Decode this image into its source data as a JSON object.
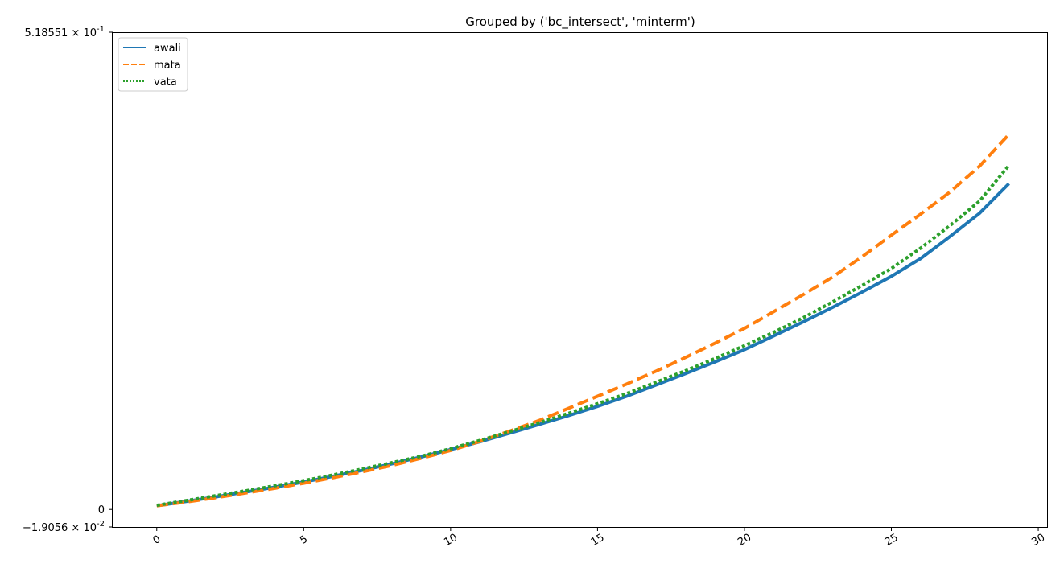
{
  "chart_data": {
    "type": "line",
    "title": "Grouped by ('bc_intersect', 'minterm')",
    "xlabel": "",
    "ylabel": "",
    "xlim": [
      -1.5,
      30.3
    ],
    "ylim": [
      -0.019056,
      0.518551
    ],
    "x_ticks": [
      0,
      5,
      10,
      15,
      20,
      25,
      30
    ],
    "x_tick_labels": [
      "0",
      "5",
      "10",
      "15",
      "20",
      "25",
      "30"
    ],
    "y_ticks": [
      {
        "value": 0.518551,
        "mantissa": "5.18551",
        "exponent": "-1"
      },
      {
        "value": 0,
        "mantissa": "0",
        "exponent": ""
      },
      {
        "value": -0.019056,
        "mantissa": "−1.9056",
        "exponent": "-2"
      }
    ],
    "legend_position": "upper-left",
    "grid": false,
    "x": [
      0,
      1,
      2,
      3,
      4,
      5,
      6,
      7,
      8,
      9,
      10,
      11,
      12,
      13,
      14,
      15,
      16,
      17,
      18,
      19,
      20,
      21,
      22,
      23,
      24,
      25,
      26,
      27,
      28,
      29
    ],
    "series": [
      {
        "name": "awali",
        "style": "solid",
        "color": "#1f77b4",
        "values": [
          0.004,
          0.0087,
          0.0136,
          0.0188,
          0.0241,
          0.0298,
          0.036,
          0.0425,
          0.0495,
          0.057,
          0.065,
          0.0735,
          0.0828,
          0.0922,
          0.1018,
          0.112,
          0.1231,
          0.1353,
          0.1477,
          0.1603,
          0.1736,
          0.1886,
          0.2038,
          0.2196,
          0.2361,
          0.2533,
          0.2727,
          0.2967,
          0.3218,
          0.354
        ]
      },
      {
        "name": "mata",
        "style": "dashed",
        "color": "#ff7f0e",
        "values": [
          0.004,
          0.008,
          0.0127,
          0.0177,
          0.0229,
          0.0285,
          0.0345,
          0.0409,
          0.0478,
          0.0556,
          0.064,
          0.074,
          0.085,
          0.0965,
          0.1097,
          0.123,
          0.1364,
          0.1504,
          0.1652,
          0.1807,
          0.1967,
          0.215,
          0.2334,
          0.2525,
          0.2745,
          0.298,
          0.321,
          0.345,
          0.373,
          0.4074
        ]
      },
      {
        "name": "vata",
        "style": "dotted",
        "color": "#2ca02c",
        "values": [
          0.0045,
          0.0096,
          0.0149,
          0.0201,
          0.0256,
          0.0313,
          0.0375,
          0.044,
          0.0508,
          0.0578,
          0.066,
          0.075,
          0.0845,
          0.0941,
          0.1043,
          0.1149,
          0.126,
          0.1383,
          0.1508,
          0.164,
          0.178,
          0.1925,
          0.2083,
          0.2255,
          0.2433,
          0.2618,
          0.284,
          0.3085,
          0.335,
          0.3738
        ]
      }
    ]
  }
}
